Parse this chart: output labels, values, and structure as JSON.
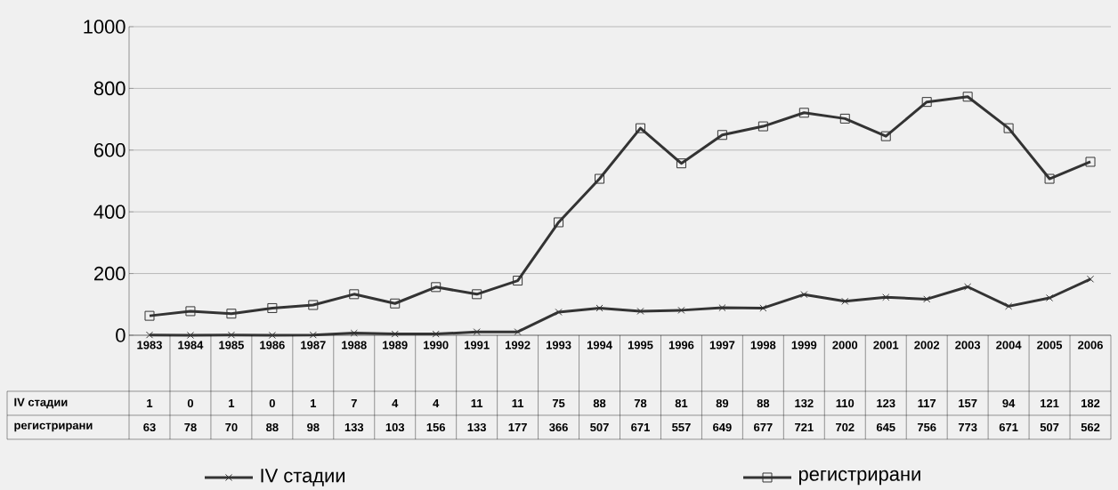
{
  "chart_data": {
    "type": "line",
    "categories": [
      "1983",
      "1984",
      "1985",
      "1986",
      "1987",
      "1988",
      "1989",
      "1990",
      "1991",
      "1992",
      "1993",
      "1994",
      "1995",
      "1996",
      "1997",
      "1998",
      "1999",
      "2000",
      "2001",
      "2002",
      "2003",
      "2004",
      "2005",
      "2006"
    ],
    "series": [
      {
        "name": "IV стадии",
        "color": "#333333",
        "marker": "cross",
        "values": [
          1,
          0,
          1,
          0,
          1,
          7,
          4,
          4,
          11,
          11,
          75,
          88,
          78,
          81,
          89,
          88,
          132,
          110,
          123,
          117,
          157,
          94,
          121,
          182
        ]
      },
      {
        "name": "регистрирани",
        "color": "#333333",
        "marker": "square",
        "values": [
          63,
          78,
          70,
          88,
          98,
          133,
          103,
          156,
          133,
          177,
          366,
          507,
          671,
          557,
          649,
          677,
          721,
          702,
          645,
          756,
          773,
          671,
          507,
          562
        ]
      }
    ],
    "ylim": [
      0,
      1000
    ],
    "yticks": [
      0,
      200,
      400,
      600,
      800,
      1000
    ],
    "grid": "y",
    "legend": "bottom",
    "data_labels": true,
    "line_style": "solid"
  }
}
